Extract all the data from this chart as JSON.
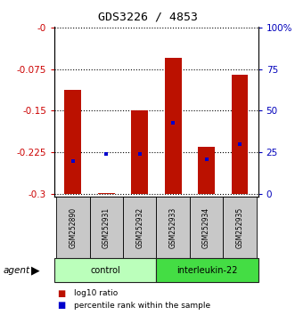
{
  "title": "GDS3226 / 4853",
  "samples": [
    "GSM252890",
    "GSM252931",
    "GSM252932",
    "GSM252933",
    "GSM252934",
    "GSM252935"
  ],
  "log10_ratio": [
    -0.112,
    -0.298,
    -0.15,
    -0.055,
    -0.215,
    -0.085
  ],
  "percentile_rank_pct": [
    20,
    24,
    24,
    43,
    21,
    30
  ],
  "bar_bottom": -0.3,
  "ylim_min": -0.305,
  "ylim_max": 0.0,
  "yticks_left": [
    0,
    -0.075,
    -0.15,
    -0.225,
    -0.3
  ],
  "ytick_labels_left": [
    "-0",
    "-0.075",
    "-0.15",
    "-0.225",
    "-0.3"
  ],
  "right_yticks_pct": [
    100,
    75,
    50,
    25,
    0
  ],
  "right_ytick_labels": [
    "100%",
    "75",
    "50",
    "25",
    "0"
  ],
  "groups": [
    {
      "label": "control",
      "n": 3,
      "color": "#BBFFBB"
    },
    {
      "label": "interleukin-22",
      "n": 3,
      "color": "#44DD44"
    }
  ],
  "bar_color": "#BB1100",
  "blue_marker_color": "#0000CC",
  "bar_width": 0.5,
  "left_tick_color": "#CC0000",
  "right_tick_color": "#0000BB",
  "agent_label": "agent",
  "legend_log10": "log10 ratio",
  "legend_pct": "percentile rank within the sample",
  "xlabel_area_color": "#C8C8C8",
  "title_font": "monospace"
}
